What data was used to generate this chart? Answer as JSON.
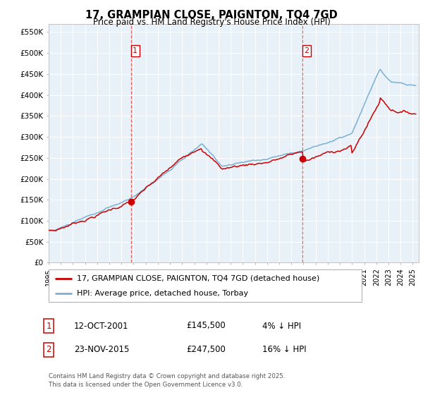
{
  "title": "17, GRAMPIAN CLOSE, PAIGNTON, TQ4 7GD",
  "subtitle": "Price paid vs. HM Land Registry's House Price Index (HPI)",
  "ylabel_ticks": [
    "£0",
    "£50K",
    "£100K",
    "£150K",
    "£200K",
    "£250K",
    "£300K",
    "£350K",
    "£400K",
    "£450K",
    "£500K",
    "£550K"
  ],
  "ytick_values": [
    0,
    50000,
    100000,
    150000,
    200000,
    250000,
    300000,
    350000,
    400000,
    450000,
    500000,
    550000
  ],
  "ylim": [
    0,
    570000
  ],
  "xlim_start": 1995.0,
  "xlim_end": 2025.5,
  "transaction1": {
    "date_num": 2001.78,
    "price": 145500,
    "label": "1"
  },
  "transaction2": {
    "date_num": 2015.9,
    "price": 247500,
    "label": "2"
  },
  "legend_entries": [
    {
      "label": "17, GRAMPIAN CLOSE, PAIGNTON, TQ4 7GD (detached house)",
      "color": "#cc0000"
    },
    {
      "label": "HPI: Average price, detached house, Torbay",
      "color": "#7ab0d4"
    }
  ],
  "annotation1": {
    "box_label": "1",
    "date": "12-OCT-2001",
    "price": "£145,500",
    "note": "4% ↓ HPI"
  },
  "annotation2": {
    "box_label": "2",
    "date": "23-NOV-2015",
    "price": "£247,500",
    "note": "16% ↓ HPI"
  },
  "footer": "Contains HM Land Registry data © Crown copyright and database right 2025.\nThis data is licensed under the Open Government Licence v3.0.",
  "background_color": "#ffffff",
  "plot_bg_color": "#e8f0f8",
  "grid_color": "#ffffff",
  "vline_color": "#ee4444"
}
